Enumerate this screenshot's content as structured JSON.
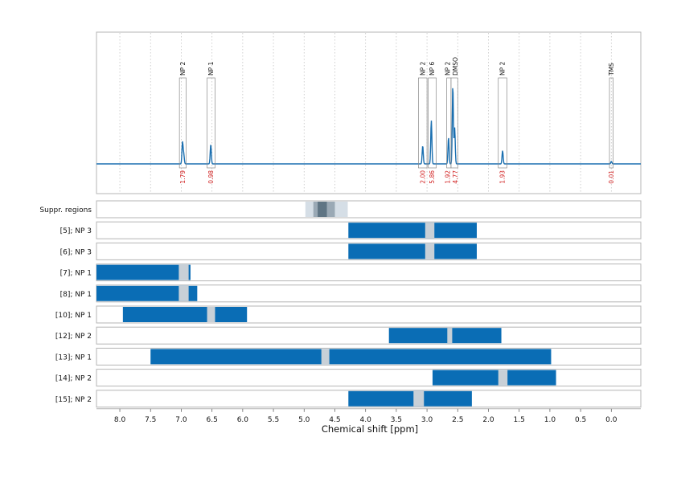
{
  "chart_data": {
    "type": "nmr-spectrum-with-range-bars",
    "xlabel": "Chemical shift [ppm]",
    "xlim": [
      8.38,
      -0.48
    ],
    "x_ticks": [
      "8.0",
      "7.5",
      "7.0",
      "6.5",
      "6.0",
      "5.5",
      "5.0",
      "4.5",
      "4.0",
      "3.5",
      "3.0",
      "2.5",
      "2.0",
      "1.5",
      "1.0",
      "0.5",
      "0.0"
    ],
    "x_tick_values": [
      8.0,
      7.5,
      7.0,
      6.5,
      6.0,
      5.5,
      5.0,
      4.5,
      4.0,
      3.5,
      3.0,
      2.5,
      2.0,
      1.5,
      1.0,
      0.5,
      0.0
    ],
    "grid": "vertical dotted",
    "colors": {
      "spectrum": "#1a6fb0",
      "bar": "#0a6db5",
      "gap": "#c8d0d7",
      "integral": "#d11f1f",
      "frame": "#b5b5b5"
    },
    "peaks": [
      {
        "label": "NP 2",
        "ppm": 6.98,
        "height": 0.18
      },
      {
        "label": "NP 2",
        "ppm": 6.96,
        "height": 0.08
      },
      {
        "label": "NP 1",
        "ppm": 6.52,
        "height": 0.16
      },
      {
        "label": "NP 2",
        "ppm": 3.07,
        "height": 0.15
      },
      {
        "label": "NP 6",
        "ppm": 2.93,
        "height": 0.36
      },
      {
        "label": "NP 2",
        "ppm": 2.65,
        "height": 0.22
      },
      {
        "label": "DMSO",
        "ppm": 2.58,
        "height": 0.65
      },
      {
        "label": "DMSO",
        "ppm": 2.55,
        "height": 0.3
      },
      {
        "label": "NP 2",
        "ppm": 1.77,
        "height": 0.11
      },
      {
        "label": "TMS",
        "ppm": 0.0,
        "height": 0.02
      }
    ],
    "annotations": [
      {
        "label": "NP 2",
        "from": 7.03,
        "to": 6.92,
        "integral": "1.79"
      },
      {
        "label": "NP 1",
        "from": 6.58,
        "to": 6.45,
        "integral": "0.98"
      },
      {
        "label": "NP 2",
        "from": 3.14,
        "to": 3.0,
        "integral": "2.00"
      },
      {
        "label": "NP 6",
        "from": 2.98,
        "to": 2.85,
        "integral": "5.86"
      },
      {
        "label": "NP 2",
        "from": 2.68,
        "to": 2.61,
        "integral": "1.92"
      },
      {
        "label": "DMSO",
        "from": 2.61,
        "to": 2.5,
        "integral": "4.77"
      },
      {
        "label": "NP 2",
        "from": 1.84,
        "to": 1.7,
        "integral": "1.93"
      },
      {
        "label": "TMS",
        "from": 0.03,
        "to": -0.03,
        "integral": "0.01"
      }
    ],
    "suppressed_regions": {
      "label": "Suppr. regions",
      "bands": [
        {
          "from": 4.98,
          "to": 4.29,
          "shade": "#d5dee6"
        },
        {
          "from": 4.85,
          "to": 4.5,
          "shade": "#9aa9b5"
        },
        {
          "from": 4.78,
          "to": 4.63,
          "shade": "#5f7584"
        }
      ]
    },
    "range_rows": [
      {
        "label": "[5]; NP 3",
        "bar": [
          4.28,
          2.19
        ],
        "gap": [
          3.03,
          2.88
        ]
      },
      {
        "label": "[6]; NP 3",
        "bar": [
          4.28,
          2.19
        ],
        "gap": [
          3.03,
          2.88
        ]
      },
      {
        "label": "[7]; NP 1",
        "bar": [
          8.38,
          6.85
        ],
        "gap": [
          7.04,
          6.88
        ]
      },
      {
        "label": "[8]; NP 1",
        "bar": [
          8.38,
          6.74
        ],
        "gap": [
          7.04,
          6.88
        ]
      },
      {
        "label": "[10]; NP 1",
        "bar": [
          7.95,
          5.93
        ],
        "gap": [
          6.58,
          6.45
        ]
      },
      {
        "label": "[12]; NP 2",
        "bar": [
          3.62,
          1.79
        ],
        "gap": [
          2.67,
          2.59
        ]
      },
      {
        "label": "[13]; NP 1",
        "bar": [
          7.5,
          0.98
        ],
        "gap": [
          4.72,
          4.59
        ]
      },
      {
        "label": "[14]; NP 2",
        "bar": [
          2.91,
          0.9
        ],
        "gap": [
          1.84,
          1.69
        ]
      },
      {
        "label": "[15]; NP 2",
        "bar": [
          4.28,
          2.27
        ],
        "gap": [
          3.22,
          3.05
        ]
      }
    ]
  }
}
